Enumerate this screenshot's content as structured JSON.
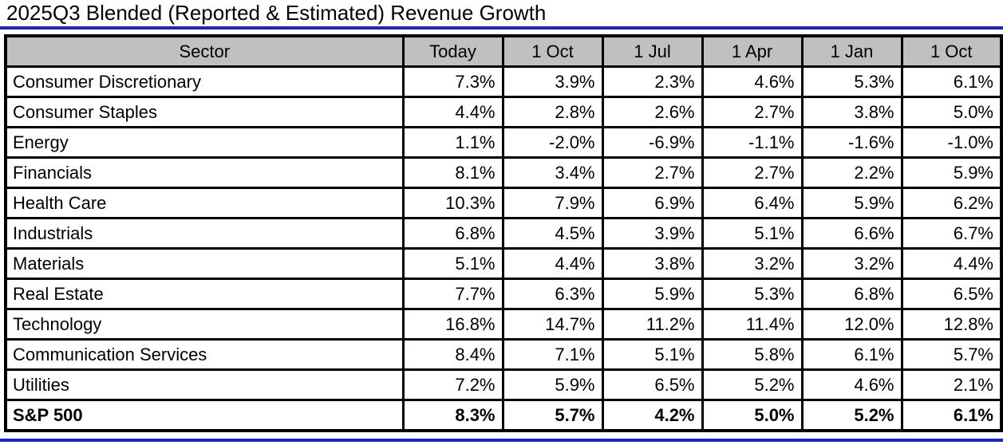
{
  "title": "2025Q3 Blended (Reported & Estimated) Revenue Growth",
  "colors": {
    "accent_blue": "#1626CE",
    "header_bg": "#C0C0C0",
    "border": "#000000",
    "text": "#000000"
  },
  "chart_data": {
    "type": "table",
    "title": "2025Q3 Blended (Reported & Estimated) Revenue Growth",
    "columns": [
      "Sector",
      "Today",
      "1 Oct",
      "1 Jul",
      "1 Apr",
      "1 Jan",
      "1 Oct"
    ],
    "rows": [
      {
        "sector": "Consumer Discretionary",
        "values": [
          "7.3%",
          "3.9%",
          "2.3%",
          "4.6%",
          "5.3%",
          "6.1%"
        ],
        "bold": false
      },
      {
        "sector": "Consumer Staples",
        "values": [
          "4.4%",
          "2.8%",
          "2.6%",
          "2.7%",
          "3.8%",
          "5.0%"
        ],
        "bold": false
      },
      {
        "sector": "Energy",
        "values": [
          "1.1%",
          "-2.0%",
          "-6.9%",
          "-1.1%",
          "-1.6%",
          "-1.0%"
        ],
        "bold": false
      },
      {
        "sector": "Financials",
        "values": [
          "8.1%",
          "3.4%",
          "2.7%",
          "2.7%",
          "2.2%",
          "5.9%"
        ],
        "bold": false
      },
      {
        "sector": "Health Care",
        "values": [
          "10.3%",
          "7.9%",
          "6.9%",
          "6.4%",
          "5.9%",
          "6.2%"
        ],
        "bold": false
      },
      {
        "sector": "Industrials",
        "values": [
          "6.8%",
          "4.5%",
          "3.9%",
          "5.1%",
          "6.6%",
          "6.7%"
        ],
        "bold": false
      },
      {
        "sector": "Materials",
        "values": [
          "5.1%",
          "4.4%",
          "3.8%",
          "3.2%",
          "3.2%",
          "4.4%"
        ],
        "bold": false
      },
      {
        "sector": "Real Estate",
        "values": [
          "7.7%",
          "6.3%",
          "5.9%",
          "5.3%",
          "6.8%",
          "6.5%"
        ],
        "bold": false
      },
      {
        "sector": "Technology",
        "values": [
          "16.8%",
          "14.7%",
          "11.2%",
          "11.4%",
          "12.0%",
          "12.8%"
        ],
        "bold": false
      },
      {
        "sector": "Communication Services",
        "values": [
          "8.4%",
          "7.1%",
          "5.1%",
          "5.8%",
          "6.1%",
          "5.7%"
        ],
        "bold": false
      },
      {
        "sector": "Utilities",
        "values": [
          "7.2%",
          "5.9%",
          "6.5%",
          "5.2%",
          "4.6%",
          "2.1%"
        ],
        "bold": false
      },
      {
        "sector": "S&P 500",
        "values": [
          "8.3%",
          "5.7%",
          "4.2%",
          "5.0%",
          "5.2%",
          "6.1%"
        ],
        "bold": true
      }
    ]
  }
}
